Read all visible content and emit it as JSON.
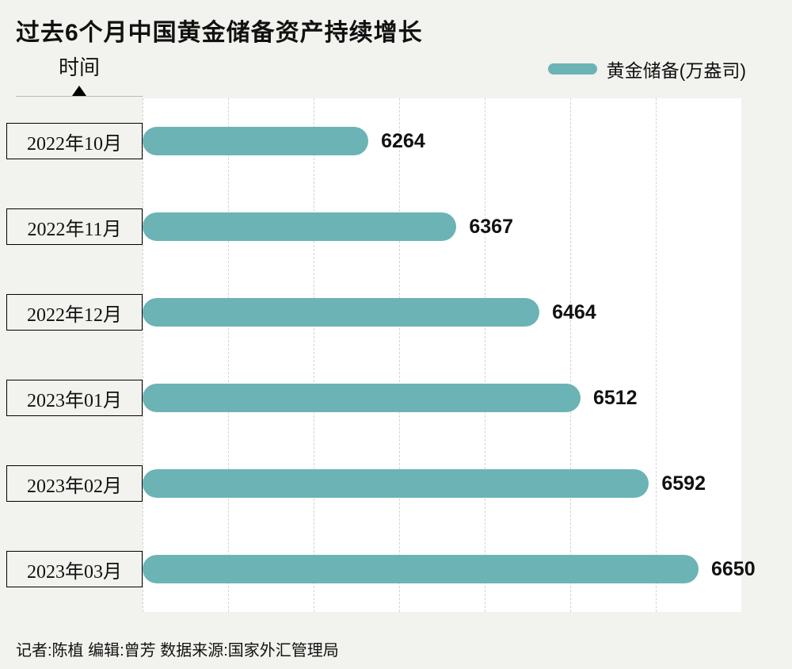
{
  "title": "过去6个月中国黄金储备资产持续增长",
  "axis_label": "时间",
  "legend": {
    "label": "黄金储备(万盎司)"
  },
  "footer": "记者:陈植   编辑:曾芳   数据来源:国家外汇管理局",
  "colors": {
    "bar": "#6cb3b5",
    "background": "#f2f2ee",
    "plot_background": "#ffffff",
    "gridline": "#d4d4d0",
    "text": "#111111"
  },
  "chart_data": {
    "type": "bar",
    "orientation": "horizontal",
    "title": "过去6个月中国黄金储备资产持续增长",
    "categories": [
      "2022年10月",
      "2022年11月",
      "2022年12月",
      "2023年01月",
      "2023年02月",
      "2023年03月"
    ],
    "values": [
      6264,
      6367,
      6464,
      6512,
      6592,
      6650
    ],
    "series_name": "黄金储备(万盎司)",
    "xlabel": "黄金储备(万盎司)",
    "ylabel": "时间",
    "xlim": [
      6000,
      6700
    ],
    "grid": "dashed-vertical",
    "grid_step": 100,
    "legend_position": "top-right",
    "value_labels": true
  }
}
